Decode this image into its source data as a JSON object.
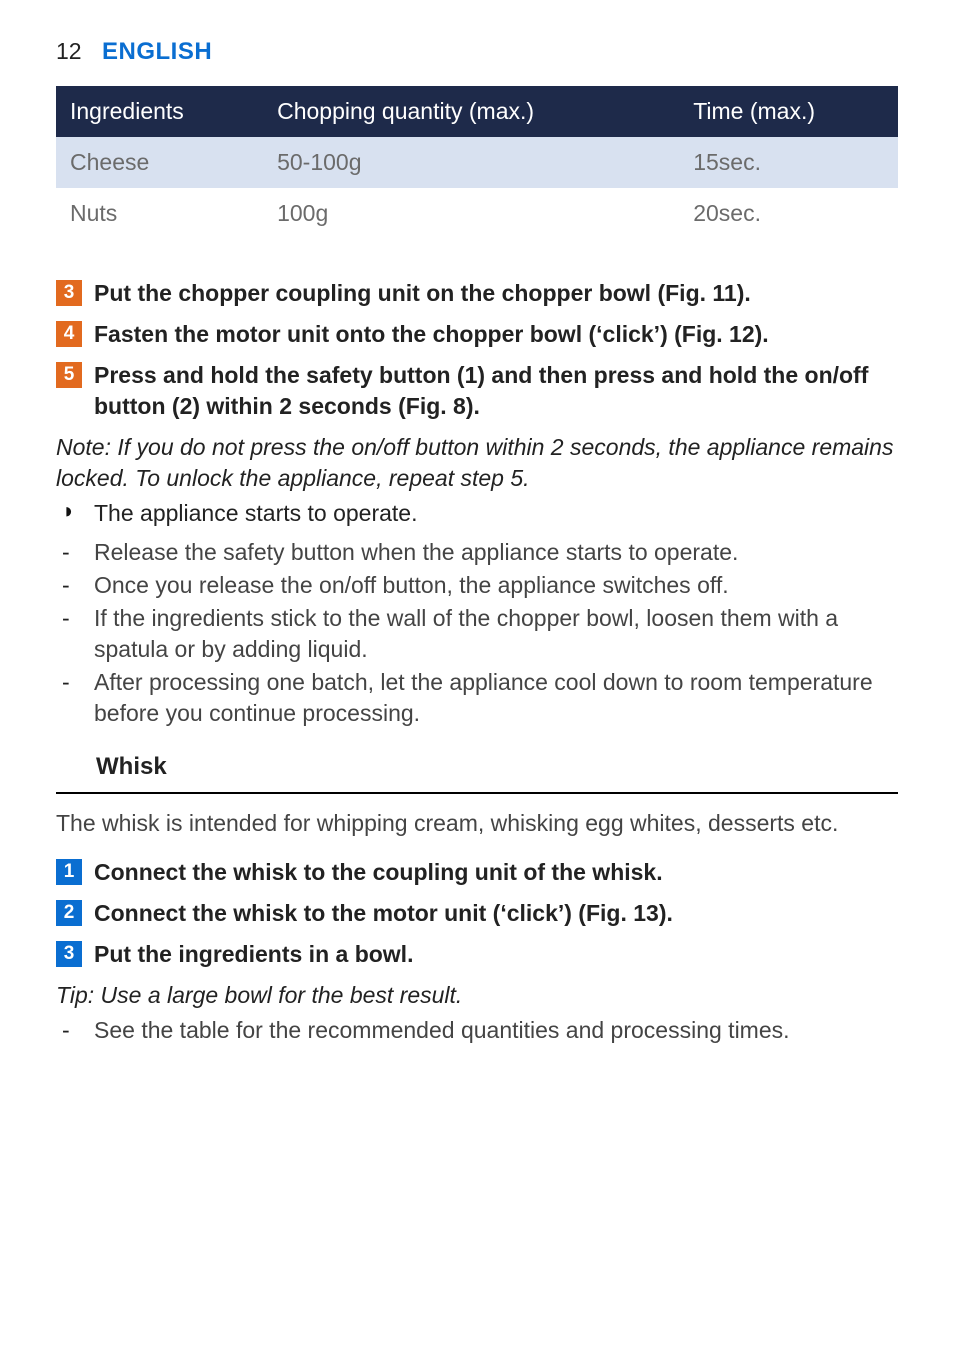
{
  "header": {
    "page_number": "12",
    "language": "ENGLISH"
  },
  "table": {
    "columns": [
      "Ingredients",
      "Chopping quantity (max.)",
      "Time (max.)"
    ],
    "rows": [
      [
        "Cheese",
        "50-100g",
        "15sec."
      ],
      [
        "Nuts",
        "100g",
        "20sec."
      ]
    ],
    "header_bg": "#1e2a4a",
    "header_text_color": "#ffffff",
    "alt_row_bg": "#d8e1f0",
    "body_text_color": "#6b6b6b"
  },
  "steps_a": [
    {
      "n": "3",
      "color": "orange",
      "text": "Put the chopper coupling unit on the chopper bowl (Fig. 11)."
    },
    {
      "n": "4",
      "color": "orange",
      "text": "Fasten the motor unit onto the chopper bowl (‘click’) (Fig. 12)."
    },
    {
      "n": "5",
      "color": "orange",
      "text": "Press and hold the safety button (1) and then press and hold the on/off button (2) within 2 seconds (Fig. 8)."
    }
  ],
  "note_a": "Note: If you do not press the on/off button within 2 seconds, the appliance remains locked. To unlock the appliance, repeat step 5.",
  "bullets_a": [
    "The appliance starts to operate."
  ],
  "dashes_a": [
    "Release the safety button when the appliance starts to operate.",
    "Once you release the on/off button, the appliance switches off.",
    "If the ingredients stick to the wall of the chopper bowl, loosen them with a spatula or by adding liquid.",
    "After processing one batch, let the appliance cool down to room temperature before you continue processing."
  ],
  "section_whisk": {
    "heading": "Whisk",
    "intro": "The whisk is intended for whipping cream, whisking egg whites, desserts etc."
  },
  "steps_b": [
    {
      "n": "1",
      "color": "blue",
      "text": "Connect the whisk to the coupling unit of the whisk."
    },
    {
      "n": "2",
      "color": "blue",
      "text": "Connect the whisk to the motor unit (‘click’) (Fig. 13)."
    },
    {
      "n": "3",
      "color": "blue",
      "text": "Put the ingredients in a bowl."
    }
  ],
  "tip_b": "Tip: Use a large bowl for the best result.",
  "dashes_b": [
    "See the table for the recommended quantities and processing times."
  ],
  "colors": {
    "badge_orange": "#e26a1f",
    "badge_blue": "#0a6ed1",
    "accent_blue": "#0a6ed1"
  }
}
